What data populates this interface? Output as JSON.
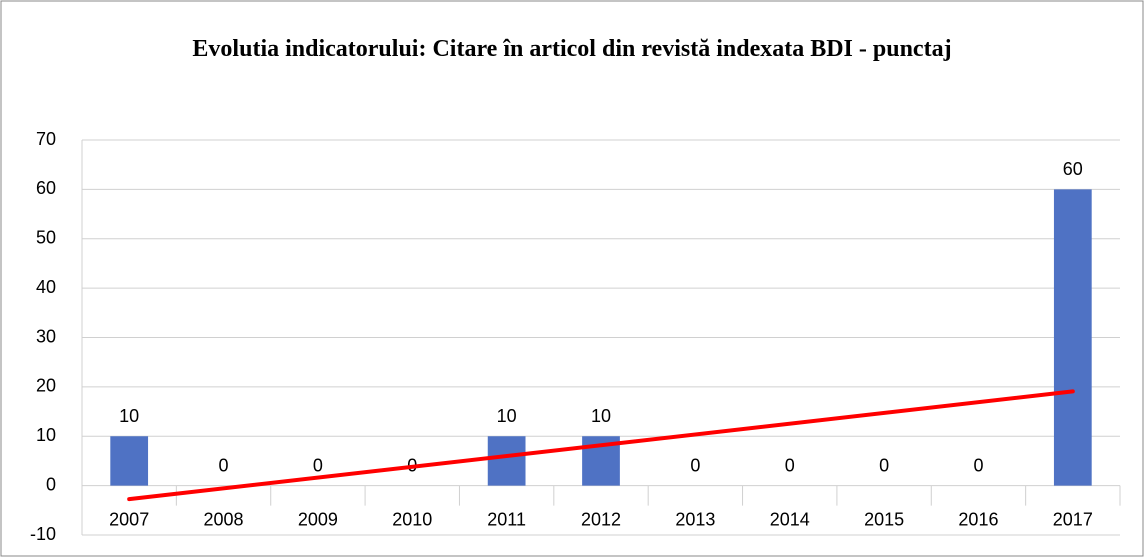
{
  "chart_data": {
    "type": "bar",
    "title": "Evolutia indicatorului: Citare în articol din revistă indexata BDI - punctaj",
    "categories": [
      "2007",
      "2008",
      "2009",
      "2010",
      "2011",
      "2012",
      "2013",
      "2014",
      "2015",
      "2016",
      "2017"
    ],
    "values": [
      10,
      0,
      0,
      0,
      10,
      10,
      0,
      0,
      0,
      0,
      60
    ],
    "color": "#4f72c4",
    "ylim": [
      -10,
      70
    ],
    "yticks": [
      -10,
      0,
      10,
      20,
      30,
      40,
      50,
      60,
      70
    ],
    "grid": true,
    "data_labels": true,
    "trendline": "linear",
    "trendline_color": "#ff0000"
  }
}
